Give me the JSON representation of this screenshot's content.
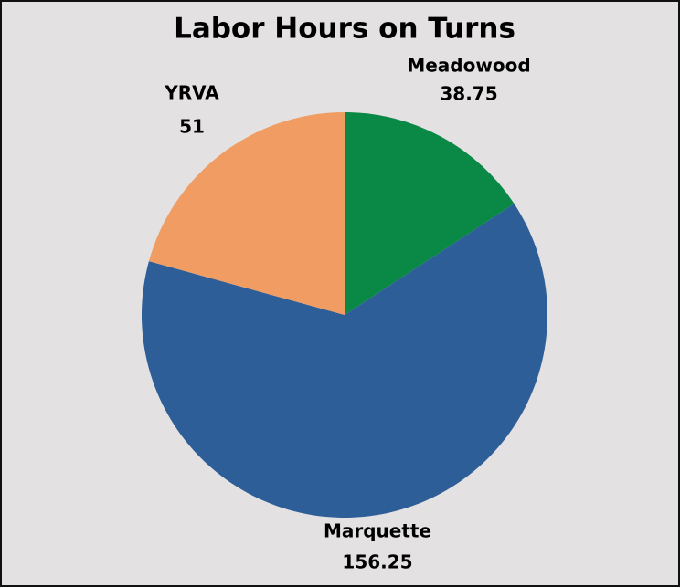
{
  "chart_data": {
    "type": "pie",
    "title": "Labor Hours on Turns",
    "categories": [
      "Meadowood",
      "Marquette",
      "YRVA"
    ],
    "values": [
      38.75,
      156.25,
      51
    ],
    "colors": [
      "#0a8846",
      "#2e5e98",
      "#f09c63"
    ]
  }
}
